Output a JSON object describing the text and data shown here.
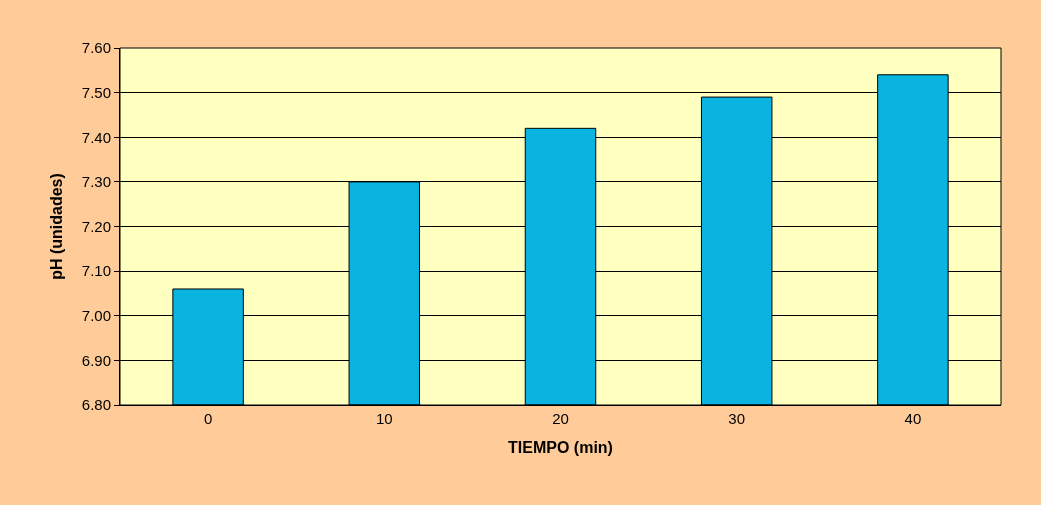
{
  "chart_data": {
    "type": "bar",
    "xlabel": "TIEMPO (min)",
    "ylabel": "pH (unidades)",
    "categories": [
      "0",
      "10",
      "20",
      "30",
      "40"
    ],
    "values": [
      7.06,
      7.3,
      7.42,
      7.49,
      7.54
    ],
    "color": "#0ab4e0",
    "ylim": [
      6.8,
      7.6
    ],
    "yticks": [
      {
        "value": 6.8,
        "label": "6.80"
      },
      {
        "value": 6.9,
        "label": "6.90"
      },
      {
        "value": 7.0,
        "label": "7.00"
      },
      {
        "value": 7.1,
        "label": "7.10"
      },
      {
        "value": 7.2,
        "label": "7.20"
      },
      {
        "value": 7.3,
        "label": "7.30"
      },
      {
        "value": 7.4,
        "label": "7.40"
      },
      {
        "value": 7.5,
        "label": "7.50"
      },
      {
        "value": 7.6,
        "label": "7.60"
      }
    ],
    "grid": "y"
  }
}
